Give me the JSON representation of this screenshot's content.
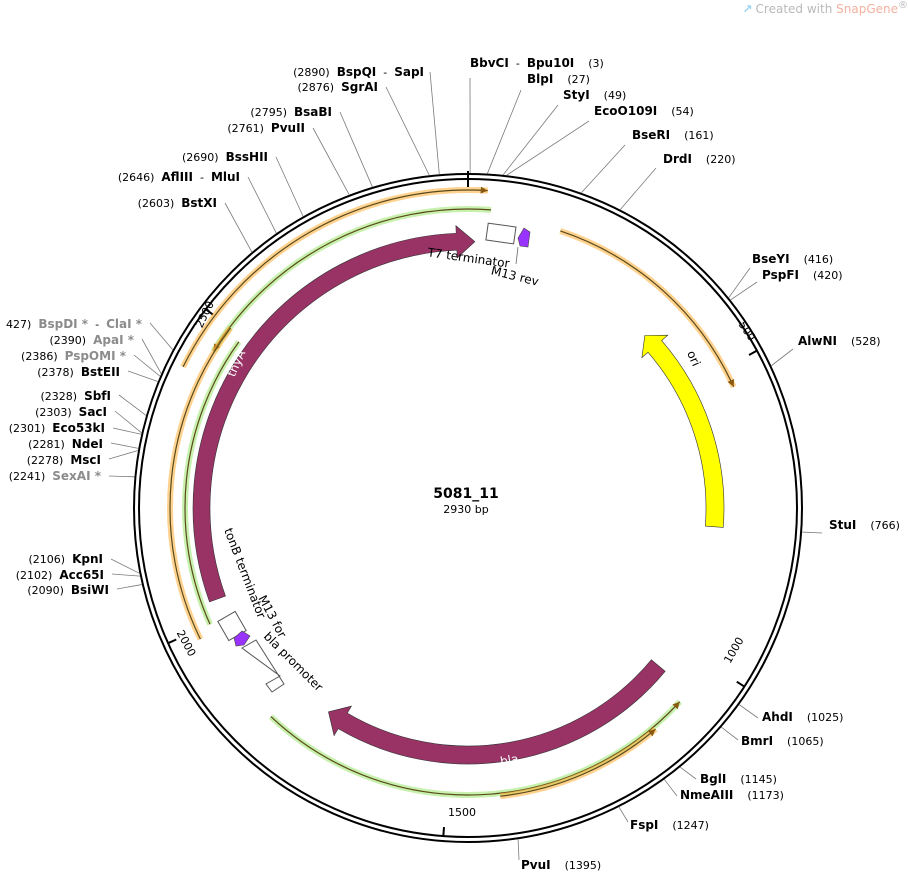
{
  "watermark": {
    "prefix": "Created with ",
    "brand": "SnapGene",
    "mark": "®"
  },
  "plasmid": {
    "name": "5081_11",
    "length_label": "2930 bp",
    "length": 2930
  },
  "ticks": [
    {
      "pos": 500,
      "label": "500"
    },
    {
      "pos": 1000,
      "label": "1000"
    },
    {
      "pos": 1500,
      "label": "1500"
    },
    {
      "pos": 2000,
      "label": "2000"
    },
    {
      "pos": 2500,
      "label": "2500"
    }
  ],
  "sites": [
    {
      "id": "bbvci",
      "parts": [
        {
          "t": "BbvCI",
          "b": true
        },
        {
          "t": "  -  "
        },
        {
          "t": "Bpu10I",
          "b": true
        },
        {
          "t": "    (3)",
          "pos": true
        }
      ]
    },
    {
      "id": "blpi",
      "parts": [
        {
          "t": "BlpI",
          "b": true
        },
        {
          "t": "    (27)",
          "pos": true
        }
      ]
    },
    {
      "id": "styi",
      "parts": [
        {
          "t": "StyI",
          "b": true
        },
        {
          "t": "    (49)",
          "pos": true
        }
      ]
    },
    {
      "id": "eco0109i",
      "parts": [
        {
          "t": "EcoO109I",
          "b": true
        },
        {
          "t": "    (54)",
          "pos": true
        }
      ]
    },
    {
      "id": "beeri",
      "parts": [
        {
          "t": "BseRI",
          "b": true
        },
        {
          "t": "    (161)",
          "pos": true
        }
      ]
    },
    {
      "id": "drdi",
      "parts": [
        {
          "t": "DrdI",
          "b": true
        },
        {
          "t": "    (220)",
          "pos": true
        }
      ]
    },
    {
      "id": "bseyi",
      "parts": [
        {
          "t": "BseYI",
          "b": true
        },
        {
          "t": "    (416)",
          "pos": true
        }
      ]
    },
    {
      "id": "pspfi",
      "parts": [
        {
          "t": "PspFI",
          "b": true
        },
        {
          "t": "    (420)",
          "pos": true
        }
      ]
    },
    {
      "id": "alwni",
      "parts": [
        {
          "t": "AlwNI",
          "b": true
        },
        {
          "t": "    (528)",
          "pos": true
        }
      ]
    },
    {
      "id": "stui",
      "parts": [
        {
          "t": "StuI",
          "b": true
        },
        {
          "t": "    (766)",
          "pos": true
        }
      ]
    },
    {
      "id": "ahdi",
      "parts": [
        {
          "t": "AhdI",
          "b": true
        },
        {
          "t": "    (1025)",
          "pos": true
        }
      ]
    },
    {
      "id": "bmri",
      "parts": [
        {
          "t": "BmrI",
          "b": true
        },
        {
          "t": "    (1065)",
          "pos": true
        }
      ]
    },
    {
      "id": "bgli",
      "parts": [
        {
          "t": "BglI",
          "b": true
        },
        {
          "t": "    (1145)",
          "pos": true
        }
      ]
    },
    {
      "id": "nmeaiii",
      "parts": [
        {
          "t": "NmeAIII",
          "b": true
        },
        {
          "t": "    (1173)",
          "pos": true
        }
      ]
    },
    {
      "id": "fspi",
      "parts": [
        {
          "t": "FspI",
          "b": true
        },
        {
          "t": "    (1247)",
          "pos": true
        }
      ]
    },
    {
      "id": "pvui",
      "parts": [
        {
          "t": "PvuI",
          "b": true
        },
        {
          "t": "    (1395)",
          "pos": true
        }
      ]
    },
    {
      "id": "bsiwi",
      "parts": [
        {
          "t": "(2090)  ",
          "pos": true
        },
        {
          "t": "BsiWI",
          "b": true
        }
      ]
    },
    {
      "id": "acc65i",
      "parts": [
        {
          "t": "(2102)  ",
          "pos": true
        },
        {
          "t": "Acc65I",
          "b": true
        }
      ]
    },
    {
      "id": "kpni",
      "parts": [
        {
          "t": "(2106)  ",
          "pos": true
        },
        {
          "t": "KpnI",
          "b": true
        }
      ]
    },
    {
      "id": "sexai",
      "parts": [
        {
          "t": "(2241)  ",
          "pos": true
        },
        {
          "t": "SexAI *",
          "b": true,
          "g": true
        }
      ]
    },
    {
      "id": "msci",
      "parts": [
        {
          "t": "(2278)  ",
          "pos": true
        },
        {
          "t": "MscI",
          "b": true
        }
      ]
    },
    {
      "id": "ndei",
      "parts": [
        {
          "t": "(2281)  ",
          "pos": true
        },
        {
          "t": "NdeI",
          "b": true
        }
      ]
    },
    {
      "id": "eco53ki",
      "parts": [
        {
          "t": "(2301)  ",
          "pos": true
        },
        {
          "t": "Eco53kI",
          "b": true
        }
      ]
    },
    {
      "id": "saci",
      "parts": [
        {
          "t": "(2303)  ",
          "pos": true
        },
        {
          "t": "SacI",
          "b": true
        }
      ]
    },
    {
      "id": "sbfi",
      "parts": [
        {
          "t": "(2328)  ",
          "pos": true
        },
        {
          "t": "SbfI",
          "b": true
        }
      ]
    },
    {
      "id": "bsteii",
      "parts": [
        {
          "t": "(2378)  ",
          "pos": true
        },
        {
          "t": "BstEII",
          "b": true
        }
      ]
    },
    {
      "id": "pspomi",
      "parts": [
        {
          "t": "(2386)  ",
          "pos": true
        },
        {
          "t": "PspOMI *",
          "b": true,
          "g": true
        }
      ]
    },
    {
      "id": "apai",
      "parts": [
        {
          "t": "(2390)  ",
          "pos": true
        },
        {
          "t": "ApaI *",
          "b": true,
          "g": true
        }
      ]
    },
    {
      "id": "bspdi",
      "parts": [
        {
          "t": "427)  ",
          "pos": true
        },
        {
          "t": "BspDI *",
          "b": true,
          "g": true
        },
        {
          "t": "  -  "
        },
        {
          "t": "ClaI *",
          "b": true,
          "g": true
        }
      ]
    },
    {
      "id": "bstxi",
      "parts": [
        {
          "t": "(2603)  ",
          "pos": true
        },
        {
          "t": "BstXI",
          "b": true
        }
      ]
    },
    {
      "id": "afliii",
      "parts": [
        {
          "t": "(2646)  ",
          "pos": true
        },
        {
          "t": "AflIII",
          "b": true
        },
        {
          "t": "  -  "
        },
        {
          "t": "MluI",
          "b": true
        }
      ]
    },
    {
      "id": "bsshii",
      "parts": [
        {
          "t": "(2690)  ",
          "pos": true
        },
        {
          "t": "BssHII",
          "b": true
        }
      ]
    },
    {
      "id": "pvuii",
      "parts": [
        {
          "t": "(2761)  ",
          "pos": true
        },
        {
          "t": "PvuII",
          "b": true
        }
      ]
    },
    {
      "id": "bsabi",
      "parts": [
        {
          "t": "(2795)  ",
          "pos": true
        },
        {
          "t": "BsaBI",
          "b": true
        }
      ]
    },
    {
      "id": "sgrai",
      "parts": [
        {
          "t": "(2876)  ",
          "pos": true
        },
        {
          "t": "SgrAI",
          "b": true
        }
      ]
    },
    {
      "id": "bspqi",
      "parts": [
        {
          "t": "(2890)  ",
          "pos": true
        },
        {
          "t": "BspQI",
          "b": true
        },
        {
          "t": "  -  "
        },
        {
          "t": "SapI",
          "b": true
        }
      ]
    }
  ],
  "features": {
    "ori": {
      "label": "ori",
      "color": "#ffff00"
    },
    "thyA": {
      "label": "thyA",
      "color": "#993366"
    },
    "bla": {
      "label": "bla",
      "color": "#993366"
    },
    "t7_terminator": {
      "label": "T7 terminator"
    },
    "m13_rev": {
      "label": "M13 rev",
      "color": "#9933ff"
    },
    "m13_for": {
      "label": "M13 for",
      "color": "#9933ff"
    },
    "tonb_terminator": {
      "label": "tonB terminator"
    },
    "bla_promoter": {
      "label": "bla promoter"
    }
  },
  "colors": {
    "orf_orange": "#ffad33",
    "orf_green": "#9be56b",
    "primer_purple": "#9933ff",
    "backbone": "#000000",
    "gray_site": "#8c8c8c"
  }
}
